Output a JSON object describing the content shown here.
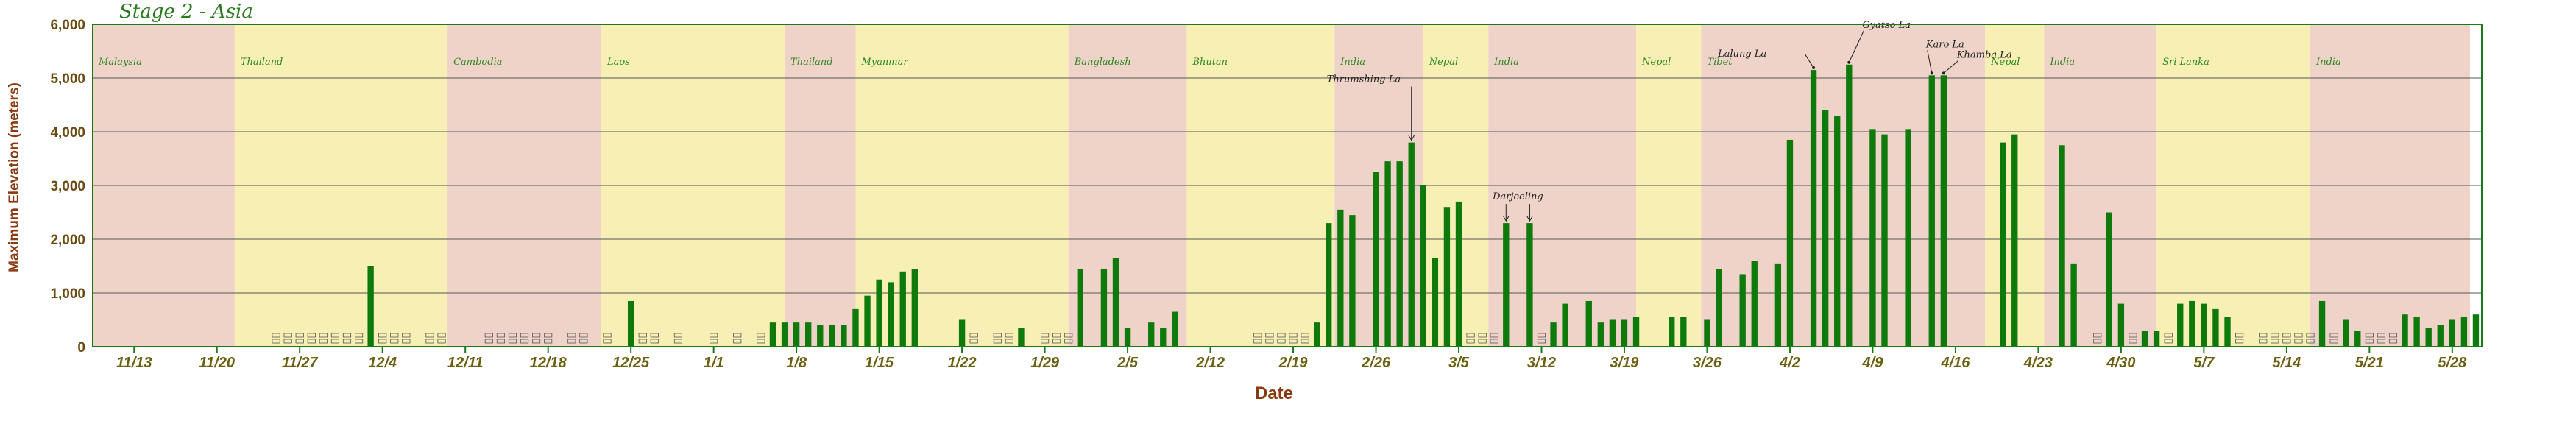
{
  "chart_data": {
    "type": "bar",
    "title": "Stage 2 - Asia",
    "xlabel": "Date",
    "ylabel": "Maximum Elevation (meters)",
    "ylim": [
      0,
      6000
    ],
    "yticks": [
      "0",
      "1,000",
      "2,000",
      "3,000",
      "4,000",
      "5,000",
      "6,000"
    ],
    "grid": true,
    "legend": "none",
    "x_start": "11/10",
    "x_end": "5/29",
    "xticks": [
      {
        "label": "11/13",
        "day": 3
      },
      {
        "label": "11/20",
        "day": 10
      },
      {
        "label": "11/27",
        "day": 17
      },
      {
        "label": "12/4",
        "day": 24
      },
      {
        "label": "12/11",
        "day": 31
      },
      {
        "label": "12/18",
        "day": 38
      },
      {
        "label": "12/25",
        "day": 45
      },
      {
        "label": "1/1",
        "day": 52
      },
      {
        "label": "1/8",
        "day": 59
      },
      {
        "label": "1/15",
        "day": 66
      },
      {
        "label": "1/22",
        "day": 73
      },
      {
        "label": "1/29",
        "day": 80
      },
      {
        "label": "2/5",
        "day": 87
      },
      {
        "label": "2/12",
        "day": 94
      },
      {
        "label": "2/19",
        "day": 101
      },
      {
        "label": "2/26",
        "day": 108
      },
      {
        "label": "3/5",
        "day": 115
      },
      {
        "label": "3/12",
        "day": 122
      },
      {
        "label": "3/19",
        "day": 129
      },
      {
        "label": "3/26",
        "day": 136
      },
      {
        "label": "4/2",
        "day": 143
      },
      {
        "label": "4/9",
        "day": 150
      },
      {
        "label": "4/16",
        "day": 157
      },
      {
        "label": "4/23",
        "day": 164
      },
      {
        "label": "4/30",
        "day": 171
      },
      {
        "label": "5/7",
        "day": 178
      },
      {
        "label": "5/14",
        "day": 185
      },
      {
        "label": "5/21",
        "day": 192
      },
      {
        "label": "5/28",
        "day": 199
      }
    ],
    "countries": [
      {
        "name": "Malaysia",
        "from": 0,
        "to": 12,
        "color": "#efd3c9"
      },
      {
        "name": "Thailand",
        "from": 12,
        "to": 30,
        "color": "#f7efb4"
      },
      {
        "name": "Cambodia",
        "from": 30,
        "to": 43,
        "color": "#efd3c9"
      },
      {
        "name": "Laos",
        "from": 43,
        "to": 58.5,
        "color": "#f7efb4"
      },
      {
        "name": "Thailand",
        "from": 58.5,
        "to": 64.5,
        "color": "#efd3c9"
      },
      {
        "name": "Myanmar",
        "from": 64.5,
        "to": 82.5,
        "color": "#f7efb4"
      },
      {
        "name": "Bangladesh",
        "from": 82.5,
        "to": 92.5,
        "color": "#efd3c9"
      },
      {
        "name": "Bhutan",
        "from": 92.5,
        "to": 105,
        "color": "#f7efb4"
      },
      {
        "name": "India",
        "from": 105,
        "to": 112.5,
        "color": "#efd3c9"
      },
      {
        "name": "Nepal",
        "from": 112.5,
        "to": 118,
        "color": "#f7efb4"
      },
      {
        "name": "India",
        "from": 118,
        "to": 130.5,
        "color": "#efd3c9"
      },
      {
        "name": "Nepal",
        "from": 130.5,
        "to": 136,
        "color": "#f7efb4"
      },
      {
        "name": "Tibet",
        "from": 136,
        "to": 160,
        "color": "#efd3c9"
      },
      {
        "name": "Nepal",
        "from": 160,
        "to": 165,
        "color": "#f7efb4"
      },
      {
        "name": "India",
        "from": 165,
        "to": 174.5,
        "color": "#efd3c9"
      },
      {
        "name": "Sri Lanka",
        "from": 174.5,
        "to": 187.5,
        "color": "#f7efb4"
      },
      {
        "name": "India",
        "from": 187.5,
        "to": 201,
        "color": "#efd3c9"
      }
    ],
    "values": [
      {
        "day": 15,
        "value": 0
      },
      {
        "day": 16,
        "value": 0
      },
      {
        "day": 17,
        "value": 0
      },
      {
        "day": 18,
        "value": 0
      },
      {
        "day": 19,
        "value": 0
      },
      {
        "day": 20,
        "value": 0
      },
      {
        "day": 21,
        "value": 0
      },
      {
        "day": 22,
        "value": 0
      },
      {
        "day": 23,
        "value": 1500
      },
      {
        "day": 24,
        "value": 0
      },
      {
        "day": 25,
        "value": 0
      },
      {
        "day": 26,
        "value": 0
      },
      {
        "day": 28,
        "value": 0
      },
      {
        "day": 29,
        "value": 0
      },
      {
        "day": 33,
        "value": 0
      },
      {
        "day": 34,
        "value": 0
      },
      {
        "day": 35,
        "value": 0
      },
      {
        "day": 36,
        "value": 0
      },
      {
        "day": 37,
        "value": 0
      },
      {
        "day": 38,
        "value": 0
      },
      {
        "day": 40,
        "value": 0
      },
      {
        "day": 41,
        "value": 0
      },
      {
        "day": 43,
        "value": 0
      },
      {
        "day": 45,
        "value": 850
      },
      {
        "day": 46,
        "value": 0
      },
      {
        "day": 47,
        "value": 0
      },
      {
        "day": 49,
        "value": 0
      },
      {
        "day": 52,
        "value": 0
      },
      {
        "day": 54,
        "value": 0
      },
      {
        "day": 56,
        "value": 0
      },
      {
        "day": 57,
        "value": 450
      },
      {
        "day": 58,
        "value": 450
      },
      {
        "day": 59,
        "value": 450
      },
      {
        "day": 60,
        "value": 450
      },
      {
        "day": 61,
        "value": 400
      },
      {
        "day": 62,
        "value": 400
      },
      {
        "day": 63,
        "value": 400
      },
      {
        "day": 64,
        "value": 700
      },
      {
        "day": 65,
        "value": 950
      },
      {
        "day": 66,
        "value": 1250
      },
      {
        "day": 67,
        "value": 1200
      },
      {
        "day": 68,
        "value": 1400
      },
      {
        "day": 69,
        "value": 1450
      },
      {
        "day": 73,
        "value": 500
      },
      {
        "day": 74,
        "value": 0
      },
      {
        "day": 76,
        "value": 0
      },
      {
        "day": 77,
        "value": 0
      },
      {
        "day": 78,
        "value": 350
      },
      {
        "day": 80,
        "value": 0
      },
      {
        "day": 81,
        "value": 0
      },
      {
        "day": 82,
        "value": 0
      },
      {
        "day": 83,
        "value": 1450
      },
      {
        "day": 85,
        "value": 1450
      },
      {
        "day": 86,
        "value": 1650
      },
      {
        "day": 87,
        "value": 350
      },
      {
        "day": 89,
        "value": 450
      },
      {
        "day": 90,
        "value": 350
      },
      {
        "day": 91,
        "value": 650
      },
      {
        "day": 98,
        "value": 0
      },
      {
        "day": 99,
        "value": 0
      },
      {
        "day": 100,
        "value": 0
      },
      {
        "day": 101,
        "value": 0
      },
      {
        "day": 102,
        "value": 0
      },
      {
        "day": 103,
        "value": 450
      },
      {
        "day": 104,
        "value": 2300
      },
      {
        "day": 105,
        "value": 2550
      },
      {
        "day": 106,
        "value": 2450
      },
      {
        "day": 108,
        "value": 3250
      },
      {
        "day": 109,
        "value": 3450
      },
      {
        "day": 110,
        "value": 3450
      },
      {
        "day": 111,
        "value": 3800
      },
      {
        "day": 112,
        "value": 3000
      },
      {
        "day": 113,
        "value": 1650
      },
      {
        "day": 114,
        "value": 2600
      },
      {
        "day": 115,
        "value": 2700
      },
      {
        "day": 116,
        "value": 0
      },
      {
        "day": 117,
        "value": 0
      },
      {
        "day": 118,
        "value": 0
      },
      {
        "day": 119,
        "value": 2300
      },
      {
        "day": 121,
        "value": 2300
      },
      {
        "day": 122,
        "value": 0
      },
      {
        "day": 123,
        "value": 450
      },
      {
        "day": 124,
        "value": 800
      },
      {
        "day": 126,
        "value": 850
      },
      {
        "day": 127,
        "value": 450
      },
      {
        "day": 128,
        "value": 500
      },
      {
        "day": 129,
        "value": 500
      },
      {
        "day": 130,
        "value": 550
      },
      {
        "day": 133,
        "value": 550
      },
      {
        "day": 134,
        "value": 550
      },
      {
        "day": 136,
        "value": 500
      },
      {
        "day": 137,
        "value": 1450
      },
      {
        "day": 139,
        "value": 1350
      },
      {
        "day": 140,
        "value": 1600
      },
      {
        "day": 142,
        "value": 1550
      },
      {
        "day": 143,
        "value": 3850
      },
      {
        "day": 145,
        "value": 5150
      },
      {
        "day": 146,
        "value": 4400
      },
      {
        "day": 147,
        "value": 4300
      },
      {
        "day": 148,
        "value": 5250
      },
      {
        "day": 150,
        "value": 4050
      },
      {
        "day": 151,
        "value": 3950
      },
      {
        "day": 153,
        "value": 4050
      },
      {
        "day": 155,
        "value": 5050
      },
      {
        "day": 156,
        "value": 5050
      },
      {
        "day": 161,
        "value": 3800
      },
      {
        "day": 162,
        "value": 3950
      },
      {
        "day": 166,
        "value": 3750
      },
      {
        "day": 167,
        "value": 1550
      },
      {
        "day": 169,
        "value": 0
      },
      {
        "day": 170,
        "value": 2500
      },
      {
        "day": 171,
        "value": 800
      },
      {
        "day": 172,
        "value": 0
      },
      {
        "day": 173,
        "value": 300
      },
      {
        "day": 174,
        "value": 300
      },
      {
        "day": 175,
        "value": 0
      },
      {
        "day": 176,
        "value": 800
      },
      {
        "day": 177,
        "value": 850
      },
      {
        "day": 178,
        "value": 800
      },
      {
        "day": 179,
        "value": 700
      },
      {
        "day": 180,
        "value": 550
      },
      {
        "day": 181,
        "value": 0
      },
      {
        "day": 183,
        "value": 0
      },
      {
        "day": 184,
        "value": 0
      },
      {
        "day": 185,
        "value": 0
      },
      {
        "day": 186,
        "value": 0
      },
      {
        "day": 187,
        "value": 0
      },
      {
        "day": 188,
        "value": 850
      },
      {
        "day": 189,
        "value": 0
      },
      {
        "day": 190,
        "value": 500
      },
      {
        "day": 191,
        "value": 300
      },
      {
        "day": 192,
        "value": 0
      },
      {
        "day": 193,
        "value": 0
      },
      {
        "day": 194,
        "value": 0
      },
      {
        "day": 195,
        "value": 600
      },
      {
        "day": 196,
        "value": 550
      },
      {
        "day": 197,
        "value": 350
      },
      {
        "day": 198,
        "value": 400
      },
      {
        "day": 199,
        "value": 500
      },
      {
        "day": 200,
        "value": 550
      },
      {
        "day": 201,
        "value": 600
      }
    ],
    "annotations": [
      {
        "text": "Thrumshing La",
        "day": 111,
        "value": 3800
      },
      {
        "text": "Darjeeling",
        "day": 119,
        "value": 2300
      },
      {
        "text": "Darjeeling",
        "day": 121,
        "value": 2300
      },
      {
        "text": "Lalung La",
        "day": 145,
        "value": 5150
      },
      {
        "text": "Gyatso La",
        "day": 148,
        "value": 5250
      },
      {
        "text": "Karo La",
        "day": 155,
        "value": 5050
      },
      {
        "text": "Khamba La",
        "day": 156,
        "value": 5050
      }
    ]
  }
}
